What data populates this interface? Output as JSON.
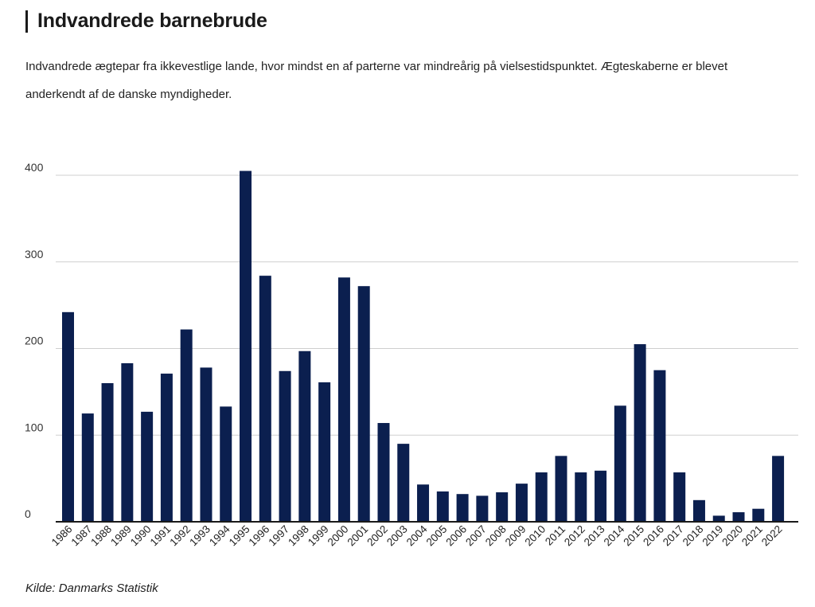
{
  "header": {
    "title": "Indvandrede barnebrude",
    "subtitle": "Indvandrede ægtepar fra ikkevestlige lande, hvor mindst en af parterne var mindreårig på vielsestidspunktet. Ægteskaberne er blevet anderkendt af de danske myndigheder."
  },
  "footer": {
    "source": "Kilde: Danmarks Statistik"
  },
  "colors": {
    "bar": "#0b1f4f",
    "grid": "#cfcfcf",
    "axis": "#1a1a1a"
  },
  "chart_data": {
    "type": "bar",
    "title": "Indvandrede barnebrude",
    "xlabel": "",
    "ylabel": "",
    "ylim": [
      0,
      400
    ],
    "yticks": [
      0,
      100,
      200,
      300,
      400
    ],
    "grid": true,
    "legend": "none",
    "categories": [
      "1986",
      "1987",
      "1988",
      "1989",
      "1990",
      "1991",
      "1992",
      "1993",
      "1994",
      "1995",
      "1996",
      "1997",
      "1998",
      "1999",
      "2000",
      "2001",
      "2002",
      "2003",
      "2004",
      "2005",
      "2006",
      "2007",
      "2008",
      "2009",
      "2010",
      "2011",
      "2012",
      "2013",
      "2014",
      "2015",
      "2016",
      "2017",
      "2018",
      "2019",
      "2020",
      "2021",
      "2022"
    ],
    "values": [
      242,
      125,
      160,
      183,
      127,
      171,
      222,
      178,
      133,
      405,
      284,
      174,
      197,
      161,
      282,
      272,
      114,
      90,
      43,
      35,
      32,
      30,
      34,
      44,
      57,
      76,
      57,
      59,
      134,
      205,
      175,
      57,
      25,
      7,
      11,
      15,
      76
    ]
  }
}
